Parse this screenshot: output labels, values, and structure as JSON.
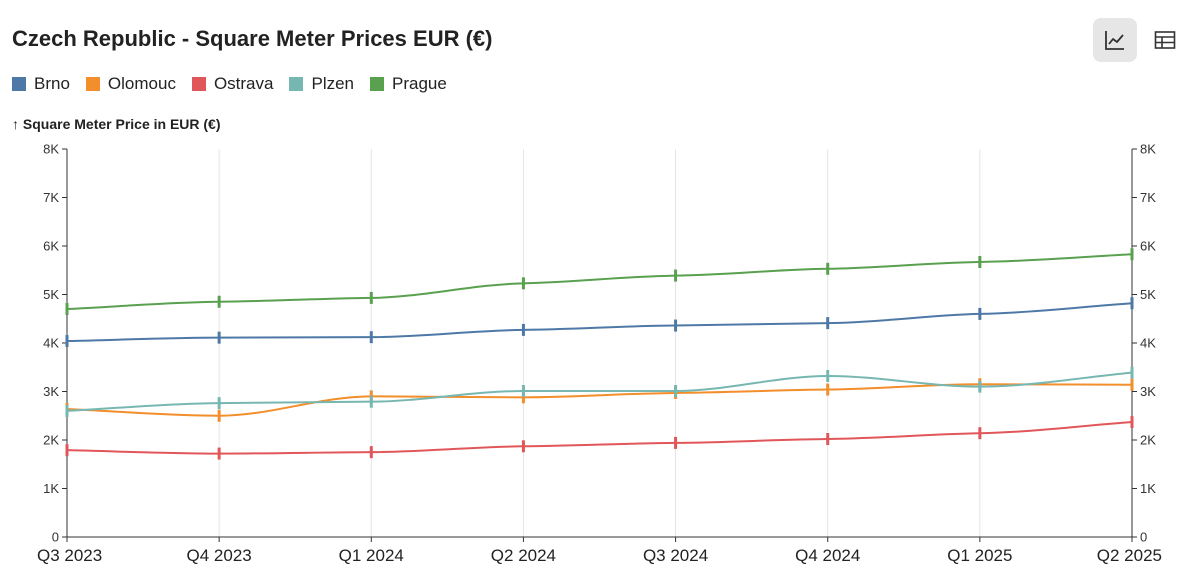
{
  "title": "Czech Republic - Square Meter Prices EUR (€)",
  "toolbar": {
    "chart_view_icon": "line-chart-icon",
    "table_view_icon": "table-icon"
  },
  "chart_data": {
    "type": "line",
    "ylabel": "↑ Square Meter Price in EUR (€)",
    "categories": [
      "Q3 2023",
      "Q4 2023",
      "Q1 2024",
      "Q2 2024",
      "Q3 2024",
      "Q4 2024",
      "Q1 2025",
      "Q2 2025"
    ],
    "ylim": [
      0,
      8000
    ],
    "yticks": [
      0,
      1000,
      2000,
      3000,
      4000,
      5000,
      6000,
      7000,
      8000
    ],
    "ytick_labels": [
      "0",
      "1K",
      "2K",
      "3K",
      "4K",
      "5K",
      "6K",
      "7K",
      "8K"
    ],
    "grid": "vertical",
    "legend": "top-left",
    "series": [
      {
        "name": "Brno",
        "color": "#4e79a7",
        "values": [
          4040,
          4110,
          4120,
          4270,
          4360,
          4410,
          4600,
          4820
        ]
      },
      {
        "name": "Olomouc",
        "color": "#f28e2b",
        "values": [
          2640,
          2500,
          2900,
          2880,
          2970,
          3040,
          3150,
          3140
        ]
      },
      {
        "name": "Ostrava",
        "color": "#e15759",
        "values": [
          1790,
          1720,
          1750,
          1870,
          1940,
          2020,
          2140,
          2370
        ]
      },
      {
        "name": "Plzen",
        "color": "#76b7b2",
        "values": [
          2600,
          2760,
          2790,
          3010,
          3010,
          3320,
          3100,
          3390
        ]
      },
      {
        "name": "Prague",
        "color": "#59a14f",
        "values": [
          4700,
          4850,
          4930,
          5230,
          5390,
          5530,
          5670,
          5830
        ]
      }
    ]
  }
}
